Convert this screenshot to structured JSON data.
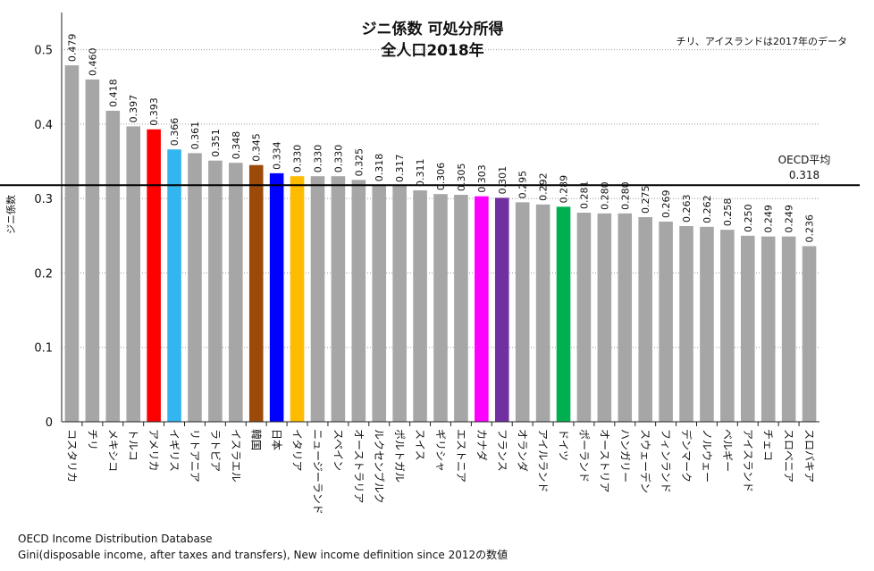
{
  "chart_data": {
    "type": "bar",
    "title_line1": "ジニ係数 可処分所得",
    "title_line2": "全人口2018年",
    "note": "チリ、アイスランドは2017年のデータ",
    "ylabel": "ジニ係数",
    "ylim": [
      0,
      0.55
    ],
    "yticks": [
      "0",
      "0.1",
      "0.2",
      "0.3",
      "0.4",
      "0.5"
    ],
    "grid": "horizontal-dotted",
    "categories": [
      "コスタリカ",
      "チリ",
      "メキシコ",
      "トルコ",
      "アメリカ",
      "イギリス",
      "リトアニア",
      "ラトビア",
      "イスラエル",
      "韓国",
      "日本",
      "イタリア",
      "ニュージーランド",
      "スペイン",
      "オーストラリア",
      "ルクセンブルク",
      "ポルトガル",
      "スイス",
      "ギリシャ",
      "エストニア",
      "カナダ",
      "フランス",
      "オランダ",
      "アイルランド",
      "ドイツ",
      "ポーランド",
      "オーストリア",
      "ハンガリー",
      "スウェーデン",
      "フィンランド",
      "デンマーク",
      "ノルウェー",
      "ベルギー",
      "アイスランド",
      "チェコ",
      "スロベニア",
      "スロバキア"
    ],
    "values": [
      0.479,
      0.46,
      0.418,
      0.397,
      0.393,
      0.366,
      0.361,
      0.351,
      0.348,
      0.345,
      0.334,
      0.33,
      0.33,
      0.33,
      0.325,
      0.318,
      0.317,
      0.311,
      0.306,
      0.305,
      0.303,
      0.301,
      0.295,
      0.292,
      0.289,
      0.281,
      0.28,
      0.28,
      0.275,
      0.269,
      0.263,
      0.262,
      0.258,
      0.25,
      0.249,
      0.249,
      0.236
    ],
    "value_labels": [
      "0.479",
      "0.460",
      "0.418",
      "0.397",
      "0.393",
      "0.366",
      "0.361",
      "0.351",
      "0.348",
      "0.345",
      "0.334",
      "0.330",
      "0.330",
      "0.330",
      "0.325",
      "0.318",
      "0.317",
      "0.311",
      "0.306",
      "0.305",
      "0.303",
      "0.301",
      "0.295",
      "0.292",
      "0.289",
      "0.281",
      "0.280",
      "0.280",
      "0.275",
      "0.269",
      "0.263",
      "0.262",
      "0.258",
      "0.250",
      "0.249",
      "0.249",
      "0.236"
    ],
    "colors": [
      "#a6a6a6",
      "#a6a6a6",
      "#a6a6a6",
      "#a6a6a6",
      "#ff0000",
      "#33b5f0",
      "#a6a6a6",
      "#a6a6a6",
      "#a6a6a6",
      "#9c4a0a",
      "#0000ff",
      "#ffbb00",
      "#a6a6a6",
      "#a6a6a6",
      "#a6a6a6",
      "#a6a6a6",
      "#a6a6a6",
      "#a6a6a6",
      "#a6a6a6",
      "#a6a6a6",
      "#ff00ff",
      "#7030a0",
      "#a6a6a6",
      "#a6a6a6",
      "#00b050",
      "#a6a6a6",
      "#a6a6a6",
      "#a6a6a6",
      "#a6a6a6",
      "#a6a6a6",
      "#a6a6a6",
      "#a6a6a6",
      "#a6a6a6",
      "#a6a6a6",
      "#a6a6a6",
      "#a6a6a6",
      "#a6a6a6"
    ],
    "reference_line": {
      "label": "OECD平均",
      "value": 0.318,
      "value_label": "0.318",
      "color": "#000000"
    },
    "source_line1": "OECD Income Distribution Database",
    "source_line2": "Gini(disposable income, after taxes and transfers), New income definition since 2012の数値"
  }
}
